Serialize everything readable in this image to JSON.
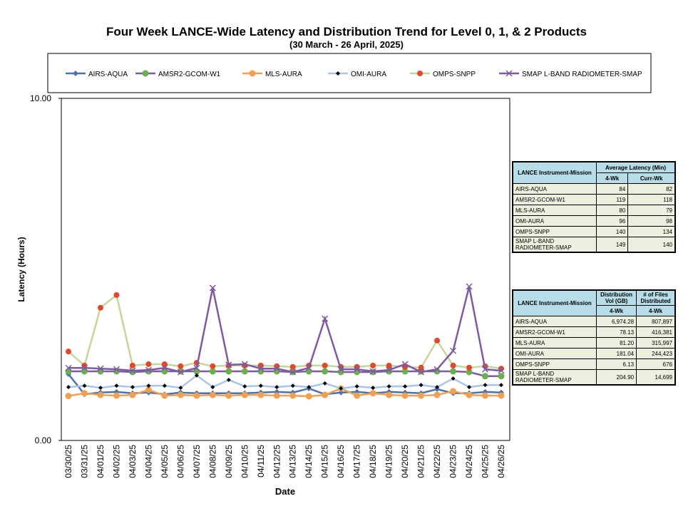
{
  "chart_data": {
    "type": "line",
    "title": "Four Week LANCE-Wide Latency and Distribution Trend for Level 0, 1, & 2 Products",
    "subtitle": "(30  March   - 26  April,  2025)",
    "x_label": "Date",
    "y_label": "Latency (Hours)",
    "ylim": [
      0,
      10
    ],
    "yticks": [
      {
        "value": 0,
        "label": "0.00"
      },
      {
        "value": 10,
        "label": "10.00"
      }
    ],
    "categories": [
      "03/30/25",
      "03/31/25",
      "04/01/25",
      "04/02/25",
      "04/03/25",
      "04/04/25",
      "04/05/25",
      "04/06/25",
      "04/07/25",
      "04/08/25",
      "04/09/25",
      "04/10/25",
      "04/11/25",
      "04/12/25",
      "04/13/25",
      "04/14/25",
      "04/15/25",
      "04/16/25",
      "04/17/25",
      "04/18/25",
      "04/19/25",
      "04/20/25",
      "04/21/25",
      "04/22/25",
      "04/23/25",
      "04/24/25",
      "04/25/25",
      "04/26/25"
    ],
    "series": [
      {
        "name": "AIRS-AQUA",
        "color": "#4a72b0",
        "marker_color": "#4a72b0",
        "marker": "diamond",
        "values": [
          1.94,
          1.35,
          1.4,
          1.42,
          1.38,
          1.4,
          1.35,
          1.4,
          1.38,
          1.38,
          1.38,
          1.38,
          1.4,
          1.42,
          1.4,
          1.52,
          1.35,
          1.4,
          1.42,
          1.38,
          1.42,
          1.4,
          1.38,
          1.5,
          1.38,
          1.38,
          1.42,
          1.4
        ]
      },
      {
        "name": "AMSR2-GCOM-W1",
        "color": "#7b5aa6",
        "marker_color": "#6ab04c",
        "marker": "circle",
        "values": [
          2.02,
          2.02,
          2.02,
          2.02,
          2.0,
          2.02,
          2.02,
          2.02,
          2.02,
          2.02,
          2.02,
          2.02,
          2.02,
          2.02,
          2.0,
          2.02,
          2.02,
          2.0,
          2.0,
          2.0,
          2.02,
          2.02,
          2.02,
          2.02,
          2.02,
          2.0,
          1.88,
          1.88
        ]
      },
      {
        "name": "MLS-AURA",
        "color": "#f0a050",
        "marker_color": "#f0a050",
        "marker": "circle",
        "values": [
          1.3,
          1.38,
          1.33,
          1.31,
          1.33,
          1.48,
          1.31,
          1.33,
          1.31,
          1.33,
          1.31,
          1.33,
          1.33,
          1.31,
          1.31,
          1.29,
          1.33,
          1.52,
          1.31,
          1.38,
          1.33,
          1.31,
          1.31,
          1.33,
          1.44,
          1.33,
          1.31,
          1.31
        ]
      },
      {
        "name": "OMI-AURA",
        "color": "#a8c4e6",
        "marker_color": "#000000",
        "marker": "diamond",
        "values": [
          1.56,
          1.6,
          1.54,
          1.6,
          1.56,
          1.6,
          1.6,
          1.54,
          1.9,
          1.56,
          1.77,
          1.58,
          1.6,
          1.56,
          1.6,
          1.56,
          1.67,
          1.52,
          1.58,
          1.54,
          1.58,
          1.58,
          1.62,
          1.56,
          1.81,
          1.56,
          1.62,
          1.62
        ]
      },
      {
        "name": "OMPS-SNPP",
        "color": "#c3d69b",
        "marker_color": "#e0472b",
        "marker": "dot",
        "values": [
          2.6,
          2.19,
          3.88,
          4.25,
          2.19,
          2.23,
          2.23,
          2.17,
          2.27,
          2.17,
          2.19,
          2.19,
          2.19,
          2.17,
          2.15,
          2.19,
          2.19,
          2.15,
          2.15,
          2.19,
          2.19,
          2.15,
          2.13,
          2.92,
          2.19,
          2.13,
          2.17,
          2.1
        ]
      },
      {
        "name": "SMAP L-BAND RADIOMETER-SMAP",
        "color": "#7e5aa0",
        "marker_color": "#7e5aa0",
        "marker": "x",
        "values": [
          2.12,
          2.12,
          2.1,
          2.08,
          2.04,
          2.06,
          2.12,
          2.0,
          2.12,
          4.46,
          2.21,
          2.23,
          2.1,
          2.1,
          2.0,
          2.12,
          3.56,
          2.08,
          2.08,
          2.02,
          2.06,
          2.23,
          2.0,
          2.08,
          2.62,
          4.5,
          2.08,
          2.04
        ]
      }
    ]
  },
  "tables": [
    {
      "header": [
        "LANCE Instrument-Mission",
        "Average Latency (Min)"
      ],
      "subheader": [
        "4-Wk",
        "Curr-Wk"
      ],
      "rows": [
        [
          "AIRS-AQUA",
          "84",
          "82"
        ],
        [
          "AMSR2-GCOM-W1",
          "119",
          "118"
        ],
        [
          "MLS-AURA",
          "80",
          "79"
        ],
        [
          "OMI-AURA",
          "96",
          "98"
        ],
        [
          "OMPS-SNPP",
          "140",
          "134"
        ],
        [
          "SMAP L-BAND RADIOMETER-SMAP",
          "149",
          "140"
        ]
      ]
    },
    {
      "header": [
        "LANCE Instrument-Mission",
        "Distribution Vol (GB)",
        "# of Files Distributed"
      ],
      "subheader": [
        "4-Wk",
        "4-Wk"
      ],
      "rows": [
        [
          "AIRS-AQUA",
          "6,974.28",
          "807,897"
        ],
        [
          "AMSR2-GCOM-W1",
          "78.13",
          "416,381"
        ],
        [
          "MLS-AURA",
          "81.20",
          "315,997"
        ],
        [
          "OMI-AURA",
          "181.04",
          "244,423"
        ],
        [
          "OMPS-SNPP",
          "6.13",
          "676"
        ],
        [
          "SMAP L-BAND RADIOMETER-SMAP",
          "204.90",
          "14,699"
        ]
      ]
    }
  ]
}
